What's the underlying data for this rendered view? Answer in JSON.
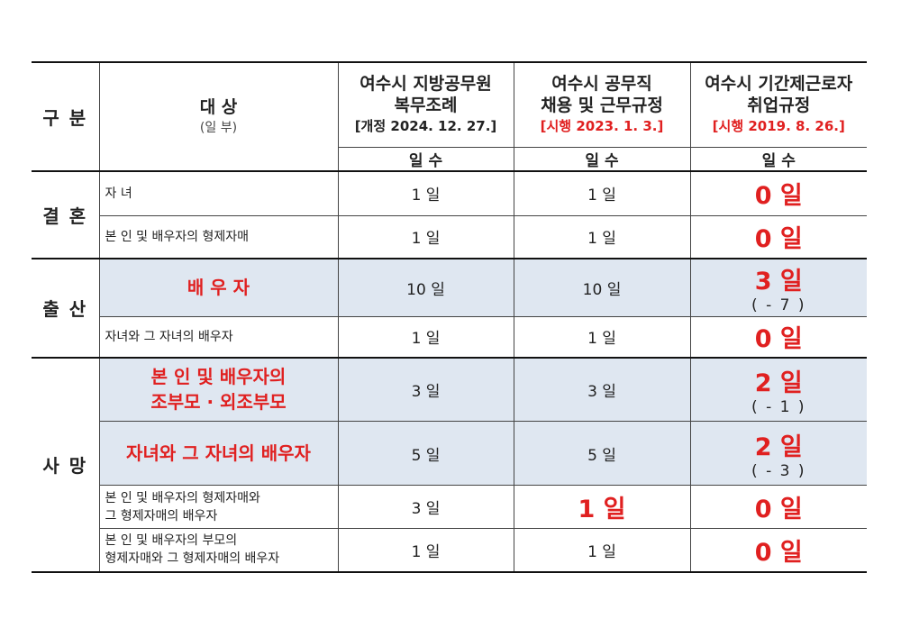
{
  "header": {
    "category": "구 분",
    "target": "대 상",
    "target_note": "(일 부)",
    "columns": [
      {
        "title": [
          "여수시 지방공무원",
          "복무조례"
        ],
        "ref": "[개정 2024. 12. 27.]",
        "ref_red": false
      },
      {
        "title": [
          "여수시 공무직",
          "채용 및 근무규정"
        ],
        "ref": "[시행 2023. 1. 3.]",
        "ref_red": true
      },
      {
        "title": [
          "여수시 기간제근로자",
          "취업규정"
        ],
        "ref": "[시행 2019. 8. 26.]",
        "ref_red": true
      }
    ],
    "unit_labels": [
      "일 수",
      "일 수",
      "일 수"
    ]
  },
  "groups": [
    {
      "label": "결 혼",
      "rows": [
        {
          "target": [
            "자 녀"
          ],
          "highlight": false,
          "values": [
            "1 일",
            "1 일",
            "0 일"
          ],
          "emphasized": [
            false,
            false,
            true
          ]
        },
        {
          "target": [
            "본 인 및 배우자의 형제자매"
          ],
          "highlight": false,
          "values": [
            "1 일",
            "1 일",
            "0 일"
          ],
          "emphasized": [
            false,
            false,
            true
          ]
        }
      ]
    },
    {
      "label": "출 산",
      "rows": [
        {
          "target": [
            "배 우 자"
          ],
          "highlight": true,
          "values": [
            "10 일",
            "10 일",
            "3 일"
          ],
          "emphasized": [
            false,
            false,
            true
          ],
          "change": "( - 7 )"
        },
        {
          "target": [
            "자녀와 그 자녀의 배우자"
          ],
          "highlight": false,
          "values": [
            "1 일",
            "1 일",
            "0 일"
          ],
          "emphasized": [
            false,
            false,
            true
          ]
        }
      ]
    },
    {
      "label": "사 망",
      "rows": [
        {
          "target": [
            "본 인 및 배우자의",
            "조부모 · 외조부모"
          ],
          "highlight": true,
          "values": [
            "3 일",
            "3 일",
            "2 일"
          ],
          "emphasized": [
            false,
            false,
            true
          ],
          "change": "( - 1 )"
        },
        {
          "target": [
            "자녀와 그 자녀의 배우자"
          ],
          "highlight": true,
          "values": [
            "5 일",
            "5 일",
            "2 일"
          ],
          "emphasized": [
            false,
            false,
            true
          ],
          "change": "( - 3 )"
        },
        {
          "target": [
            "본 인 및 배우자의 형제자매와",
            "그 형제자매의 배우자"
          ],
          "highlight": false,
          "values": [
            "3 일",
            "1 일",
            "0 일"
          ],
          "emphasized": [
            false,
            true,
            true
          ]
        },
        {
          "target": [
            "본 인 및 배우자의 부모의",
            "형제자매와 그 형제자매의 배우자"
          ],
          "highlight": false,
          "values": [
            "1 일",
            "1 일",
            "0 일"
          ],
          "emphasized": [
            false,
            false,
            true
          ]
        }
      ]
    }
  ]
}
